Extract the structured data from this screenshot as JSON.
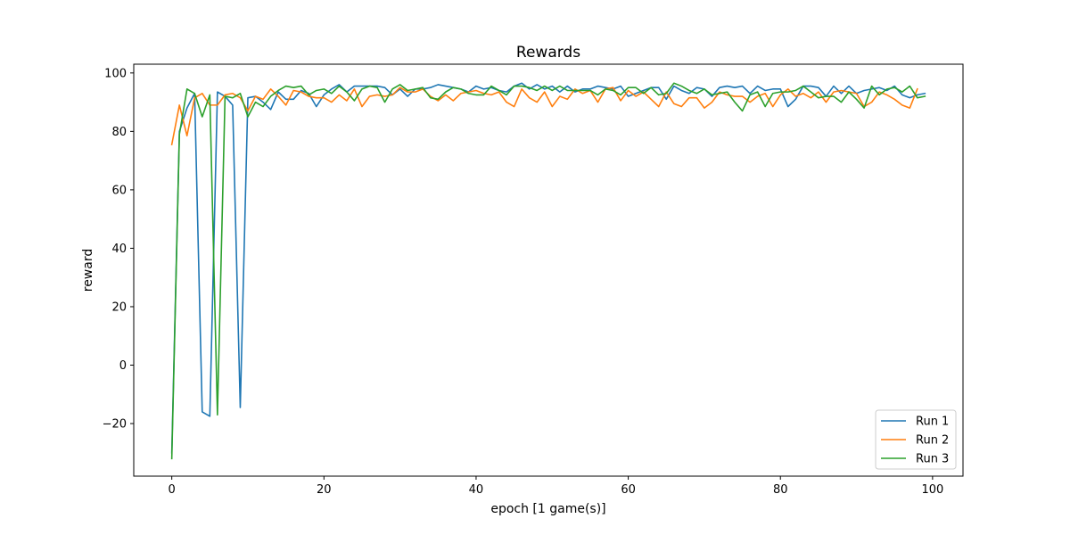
{
  "chart_data": {
    "type": "line",
    "title": "Rewards",
    "xlabel": "epoch [1 game(s)]",
    "ylabel": "reward",
    "xlim": [
      -5,
      104
    ],
    "ylim": [
      -38,
      103
    ],
    "xticks": [
      0,
      20,
      40,
      60,
      80,
      100
    ],
    "yticks": [
      -20,
      0,
      20,
      40,
      60,
      80,
      100
    ],
    "grid": false,
    "legend_position": "lower right",
    "series": [
      {
        "name": "Run 1",
        "color": "#1f77b4",
        "x": [
          0,
          1,
          2,
          3,
          4,
          5,
          6,
          7,
          8,
          9,
          10,
          11,
          12,
          13,
          14,
          15,
          16,
          17,
          18,
          19,
          20,
          21,
          22,
          23,
          24,
          25,
          26,
          27,
          28,
          29,
          30,
          31,
          32,
          33,
          34,
          35,
          36,
          37,
          38,
          39,
          40,
          41,
          42,
          43,
          44,
          45,
          46,
          47,
          48,
          49,
          50,
          51,
          52,
          53,
          54,
          55,
          56,
          57,
          58,
          59,
          60,
          61,
          62,
          63,
          64,
          65,
          66,
          67,
          68,
          69,
          70,
          71,
          72,
          73,
          74,
          75,
          76,
          77,
          78,
          79,
          80,
          81,
          82,
          83,
          84,
          85,
          86,
          87,
          88,
          89,
          90,
          91,
          92,
          93,
          94,
          95,
          96,
          97,
          98,
          99
        ],
        "y": [
          -30,
          80,
          88,
          93,
          -16,
          -17.5,
          93.5,
          92,
          89,
          -14.5,
          91.5,
          92,
          90,
          87.5,
          93.5,
          91,
          91,
          94,
          93,
          88.5,
          92.5,
          94.5,
          96,
          93.5,
          95.5,
          95.5,
          95.5,
          95.5,
          95,
          92.5,
          94.5,
          92,
          94.5,
          94.5,
          95,
          96,
          95.5,
          95,
          94.5,
          93.5,
          95.5,
          94.5,
          95,
          94,
          93.5,
          95.5,
          96.5,
          94.5,
          96,
          94.5,
          95.5,
          93.5,
          95.5,
          93.5,
          94.5,
          94.5,
          95.5,
          95,
          94.5,
          95.5,
          92,
          93,
          94,
          95,
          95,
          91,
          95.5,
          94,
          93,
          95,
          94.5,
          92,
          95,
          95.5,
          95,
          95.5,
          93,
          95.5,
          94,
          94.5,
          94.5,
          88.5,
          91,
          95.5,
          95.5,
          95,
          92,
          95.5,
          93,
          95.5,
          93,
          94,
          94.5,
          95,
          94,
          95.5,
          92.5,
          91.5,
          92.5,
          93
        ]
      },
      {
        "name": "Run 2",
        "color": "#ff7f0e",
        "x": [
          0,
          1,
          2,
          3,
          4,
          5,
          6,
          7,
          8,
          9,
          10,
          11,
          12,
          13,
          14,
          15,
          16,
          17,
          18,
          19,
          20,
          21,
          22,
          23,
          24,
          25,
          26,
          27,
          28,
          29,
          30,
          31,
          32,
          33,
          34,
          35,
          36,
          37,
          38,
          39,
          40,
          41,
          42,
          43,
          44,
          45,
          46,
          47,
          48,
          49,
          50,
          51,
          52,
          53,
          54,
          55,
          56,
          57,
          58,
          59,
          60,
          61,
          62,
          63,
          64,
          65,
          66,
          67,
          68,
          69,
          70,
          71,
          72,
          73,
          74,
          75,
          76,
          77,
          78,
          79,
          80,
          81,
          82,
          83,
          84,
          85,
          86,
          87,
          88,
          89,
          90,
          91,
          92,
          93,
          94,
          95,
          96,
          97,
          98,
          99
        ],
        "y": [
          75.5,
          89,
          78.5,
          91.5,
          93,
          89,
          89,
          92.5,
          93,
          91.5,
          87,
          92,
          91,
          94.5,
          92,
          89,
          94,
          93.5,
          92,
          91.5,
          91.5,
          90,
          92.5,
          90.5,
          94.5,
          88.5,
          92,
          92.5,
          92,
          92.5,
          95,
          93.5,
          93.5,
          94.5,
          92,
          90.5,
          92.5,
          90.5,
          93,
          93.5,
          94,
          93,
          92.5,
          93.5,
          90,
          88.5,
          94.5,
          91.5,
          90,
          93.5,
          88.5,
          92,
          91,
          94.5,
          93,
          94,
          90,
          94.5,
          95,
          90.5,
          94,
          92,
          93.5,
          91,
          88.5,
          93.5,
          89.5,
          88.5,
          91.5,
          91.5,
          88,
          90,
          93.5,
          92.5,
          92,
          92,
          90,
          92,
          93,
          88.5,
          92.5,
          94.5,
          92,
          93,
          91.5,
          93.5,
          90,
          93.5,
          94,
          93.5,
          93,
          88.5,
          90,
          93.5,
          92.5,
          91,
          89,
          88,
          94.5,
          null
        ]
      },
      {
        "name": "Run 3",
        "color": "#2ca02c",
        "x": [
          0,
          1,
          2,
          3,
          4,
          5,
          6,
          7,
          8,
          9,
          10,
          11,
          12,
          13,
          14,
          15,
          16,
          17,
          18,
          19,
          20,
          21,
          22,
          23,
          24,
          25,
          26,
          27,
          28,
          29,
          30,
          31,
          32,
          33,
          34,
          35,
          36,
          37,
          38,
          39,
          40,
          41,
          42,
          43,
          44,
          45,
          46,
          47,
          48,
          49,
          50,
          51,
          52,
          53,
          54,
          55,
          56,
          57,
          58,
          59,
          60,
          61,
          62,
          63,
          64,
          65,
          66,
          67,
          68,
          69,
          70,
          71,
          72,
          73,
          74,
          75,
          76,
          77,
          78,
          79,
          80,
          81,
          82,
          83,
          84,
          85,
          86,
          87,
          88,
          89,
          90,
          91,
          92,
          93,
          94,
          95,
          96,
          97,
          98,
          99
        ],
        "y": [
          -32,
          79,
          94.5,
          93,
          85,
          92.5,
          -17,
          92,
          91.5,
          93,
          85,
          90,
          88.5,
          92,
          94,
          95.5,
          95,
          95.5,
          92.5,
          94,
          94.5,
          93,
          95.5,
          93.5,
          90.5,
          94.5,
          95.5,
          95,
          90,
          94.5,
          96,
          94,
          94.5,
          95,
          91.5,
          91,
          93.5,
          95,
          94.5,
          93,
          92.5,
          92.5,
          95.5,
          94,
          92.5,
          95.5,
          95.5,
          95,
          94,
          95.5,
          94,
          95.5,
          94,
          94,
          94,
          94,
          92.5,
          94.5,
          94,
          92.5,
          95,
          95,
          93,
          95,
          92.5,
          93,
          96.5,
          95.5,
          94,
          93,
          94.5,
          92.5,
          93,
          93.5,
          90,
          87,
          92.5,
          93.5,
          88.5,
          93,
          93.5,
          93.5,
          94,
          95.5,
          93.5,
          91.5,
          92,
          92,
          90,
          93.5,
          91,
          88,
          95.5,
          92.5,
          94.5,
          95,
          93.5,
          95.5,
          91.5,
          92
        ]
      }
    ]
  }
}
